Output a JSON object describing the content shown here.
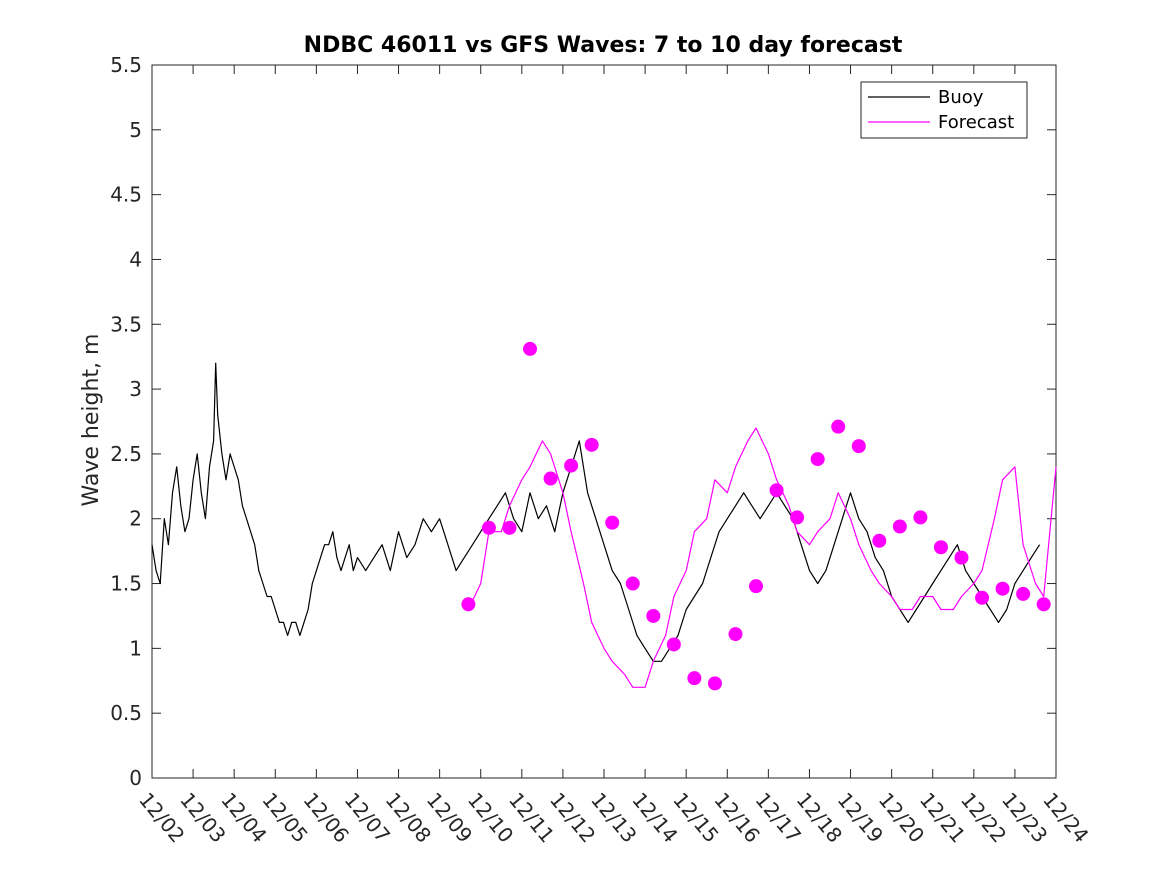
{
  "chart_data": {
    "type": "line",
    "title": "NDBC 46011 vs GFS Waves: 7 to 10 day forecast",
    "xlabel": "",
    "ylabel": "Wave height, m",
    "xlim": [
      0,
      22
    ],
    "ylim": [
      0,
      5.5
    ],
    "x_tick_labels": [
      "12/02",
      "12/03",
      "12/04",
      "12/05",
      "12/06",
      "12/07",
      "12/08",
      "12/09",
      "12/10",
      "12/11",
      "12/12",
      "12/13",
      "12/14",
      "12/15",
      "12/16",
      "12/17",
      "12/18",
      "12/19",
      "12/20",
      "12/21",
      "12/22",
      "12/23",
      "12/24"
    ],
    "y_tick_labels": [
      "0",
      "0.5",
      "1",
      "1.5",
      "2",
      "2.5",
      "3",
      "3.5",
      "4",
      "4.5",
      "5",
      "5.5"
    ],
    "legend": {
      "position": "top-right",
      "entries": [
        {
          "label": "Buoy",
          "color": "#000000"
        },
        {
          "label": "Forecast",
          "color": "#ff00ff"
        }
      ]
    },
    "series": [
      {
        "name": "Buoy",
        "color": "#000000",
        "x": [
          0,
          0.1,
          0.2,
          0.3,
          0.4,
          0.5,
          0.6,
          0.7,
          0.8,
          0.9,
          1.0,
          1.1,
          1.2,
          1.3,
          1.4,
          1.5,
          1.55,
          1.6,
          1.7,
          1.8,
          1.9,
          2.0,
          2.1,
          2.2,
          2.3,
          2.4,
          2.5,
          2.6,
          2.7,
          2.8,
          2.9,
          3.0,
          3.1,
          3.2,
          3.3,
          3.4,
          3.5,
          3.6,
          3.7,
          3.8,
          3.9,
          4.0,
          4.1,
          4.2,
          4.3,
          4.4,
          4.5,
          4.6,
          4.7,
          4.8,
          4.9,
          5.0,
          5.2,
          5.4,
          5.6,
          5.8,
          6.0,
          6.2,
          6.4,
          6.6,
          6.8,
          7.0,
          7.2,
          7.4,
          7.6,
          7.8,
          8.0,
          8.2,
          8.4,
          8.6,
          8.8,
          9.0,
          9.2,
          9.4,
          9.6,
          9.8,
          10.0,
          10.2,
          10.4,
          10.6,
          10.8,
          11.0,
          11.2,
          11.4,
          11.6,
          11.8,
          12.0,
          12.2,
          12.4,
          12.6,
          12.8,
          13.0,
          13.2,
          13.4,
          13.6,
          13.8,
          14.0,
          14.2,
          14.4,
          14.6,
          14.8,
          15.0,
          15.2,
          15.4,
          15.6,
          15.8,
          16.0,
          16.2,
          16.4,
          16.6,
          16.8,
          17.0,
          17.2,
          17.4,
          17.6,
          17.8,
          18.0,
          18.2,
          18.4,
          18.6,
          18.8,
          19.0,
          19.2,
          19.4,
          19.6,
          19.8,
          20.0,
          20.2,
          20.4,
          20.6,
          20.8,
          21.0,
          21.2,
          21.4,
          21.6
        ],
        "values": [
          1.8,
          1.6,
          1.5,
          2.0,
          1.8,
          2.2,
          2.4,
          2.1,
          1.9,
          2.0,
          2.3,
          2.5,
          2.2,
          2.0,
          2.4,
          2.6,
          3.2,
          2.8,
          2.5,
          2.3,
          2.5,
          2.4,
          2.3,
          2.1,
          2.0,
          1.9,
          1.8,
          1.6,
          1.5,
          1.4,
          1.4,
          1.3,
          1.2,
          1.2,
          1.1,
          1.2,
          1.2,
          1.1,
          1.2,
          1.3,
          1.5,
          1.6,
          1.7,
          1.8,
          1.8,
          1.9,
          1.7,
          1.6,
          1.7,
          1.8,
          1.6,
          1.7,
          1.6,
          1.7,
          1.8,
          1.6,
          1.9,
          1.7,
          1.8,
          2.0,
          1.9,
          2.0,
          1.8,
          1.6,
          1.7,
          1.8,
          1.9,
          2.0,
          2.1,
          2.2,
          2.0,
          1.9,
          2.2,
          2.0,
          2.1,
          1.9,
          2.2,
          2.4,
          2.6,
          2.2,
          2.0,
          1.8,
          1.6,
          1.5,
          1.3,
          1.1,
          1.0,
          0.9,
          0.9,
          1.0,
          1.1,
          1.3,
          1.4,
          1.5,
          1.7,
          1.9,
          2.0,
          2.1,
          2.2,
          2.1,
          2.0,
          2.1,
          2.2,
          2.1,
          2.0,
          1.8,
          1.6,
          1.5,
          1.6,
          1.8,
          2.0,
          2.2,
          2.0,
          1.9,
          1.7,
          1.6,
          1.4,
          1.3,
          1.2,
          1.3,
          1.4,
          1.5,
          1.6,
          1.7,
          1.8,
          1.6,
          1.5,
          1.4,
          1.3,
          1.2,
          1.3,
          1.5,
          1.6,
          1.7,
          1.8
        ]
      },
      {
        "name": "Forecast",
        "color": "#ff00ff",
        "x": [
          7.7,
          8.0,
          8.2,
          8.5,
          8.7,
          9.0,
          9.2,
          9.5,
          9.7,
          10.0,
          10.2,
          10.5,
          10.7,
          11.0,
          11.2,
          11.5,
          11.7,
          12.0,
          12.2,
          12.5,
          12.7,
          13.0,
          13.2,
          13.5,
          13.7,
          14.0,
          14.2,
          14.5,
          14.7,
          15.0,
          15.2,
          15.5,
          15.7,
          16.0,
          16.2,
          16.5,
          16.7,
          17.0,
          17.2,
          17.5,
          17.7,
          18.0,
          18.2,
          18.5,
          18.7,
          19.0,
          19.2,
          19.5,
          19.7,
          20.0,
          20.2,
          20.5,
          20.7,
          21.0,
          21.2,
          21.5,
          21.7,
          22.0
        ],
        "values": [
          1.3,
          1.5,
          1.9,
          1.9,
          2.1,
          2.3,
          2.4,
          2.6,
          2.5,
          2.2,
          1.9,
          1.5,
          1.2,
          1.0,
          0.9,
          0.8,
          0.7,
          0.7,
          0.9,
          1.1,
          1.4,
          1.6,
          1.9,
          2.0,
          2.3,
          2.2,
          2.4,
          2.6,
          2.7,
          2.5,
          2.3,
          2.1,
          1.9,
          1.8,
          1.9,
          2.0,
          2.2,
          2.0,
          1.8,
          1.6,
          1.5,
          1.4,
          1.3,
          1.3,
          1.4,
          1.4,
          1.3,
          1.3,
          1.4,
          1.5,
          1.6,
          2.0,
          2.3,
          2.4,
          1.8,
          1.5,
          1.4,
          2.4
        ]
      }
    ],
    "forecast_markers": {
      "name": "Forecast",
      "color": "#ff00ff",
      "x": [
        7.7,
        8.2,
        8.7,
        9.2,
        9.7,
        10.2,
        10.7,
        11.2,
        11.7,
        12.2,
        12.7,
        13.2,
        13.7,
        14.2,
        14.7,
        15.2,
        15.7,
        16.2,
        16.7,
        17.2,
        17.7,
        18.2,
        18.7,
        19.2,
        19.7,
        20.2,
        20.7,
        21.2,
        21.7
      ],
      "values": [
        1.34,
        1.93,
        1.93,
        3.31,
        2.31,
        2.41,
        2.57,
        1.97,
        1.5,
        1.25,
        1.03,
        0.77,
        0.73,
        1.11,
        1.48,
        2.22,
        2.01,
        2.46,
        2.71,
        2.56,
        1.83,
        1.94,
        2.01,
        1.78,
        1.7,
        1.39,
        1.46,
        1.42,
        1.34
      ]
    }
  }
}
